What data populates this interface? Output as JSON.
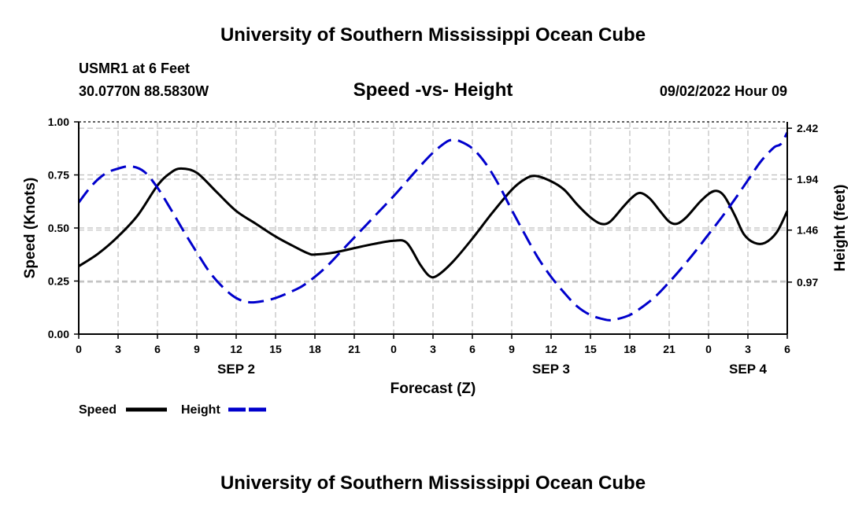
{
  "header": {
    "title": "University of Southern Mississippi Ocean Cube",
    "station": "USMR1 at 6 Feet",
    "coordinates": "30.0770N  88.5830W",
    "subtitle": "Speed -vs- Height",
    "datetime": "09/02/2022 Hour 09",
    "footer_title": "University of Southern Mississippi Ocean Cube"
  },
  "chart_data": {
    "type": "line",
    "title": "Speed -vs- Height",
    "xlabel": "Forecast (Z)",
    "ylabel": "Speed (Knots)",
    "y2label": "Height (feet)",
    "x_hours": [
      0,
      3,
      6,
      9,
      12,
      15,
      18,
      21,
      24,
      27,
      30,
      33,
      36,
      39,
      42,
      45,
      48,
      51,
      54
    ],
    "x_tick_labels": [
      "0",
      "3",
      "6",
      "9",
      "12",
      "15",
      "18",
      "21",
      "0",
      "3",
      "6",
      "9",
      "12",
      "15",
      "18",
      "21",
      "0",
      "3",
      "6"
    ],
    "date_labels": [
      {
        "label": "SEP 2",
        "hour": 12
      },
      {
        "label": "SEP 3",
        "hour": 36
      },
      {
        "label": "SEP 4",
        "hour": 51
      }
    ],
    "xlim": [
      0,
      54
    ],
    "ylim": [
      0,
      1.0
    ],
    "y_ticks": [
      "0.00",
      "0.25",
      "0.50",
      "0.75",
      "1.00"
    ],
    "y2lim": [
      0.48,
      2.48
    ],
    "y2_ticks": [
      "0.97",
      "1.46",
      "1.94",
      "2.42"
    ],
    "grid": true,
    "series": [
      {
        "name": "Speed",
        "axis": "left",
        "color": "#000000",
        "style": "solid",
        "points": [
          [
            0,
            0.32
          ],
          [
            1.5,
            0.38
          ],
          [
            3,
            0.46
          ],
          [
            4.5,
            0.56
          ],
          [
            6,
            0.7
          ],
          [
            7,
            0.76
          ],
          [
            7.8,
            0.78
          ],
          [
            9,
            0.76
          ],
          [
            10.5,
            0.67
          ],
          [
            12,
            0.58
          ],
          [
            13.5,
            0.52
          ],
          [
            15,
            0.46
          ],
          [
            16.5,
            0.41
          ],
          [
            17.5,
            0.38
          ],
          [
            18,
            0.375
          ],
          [
            19.5,
            0.385
          ],
          [
            21,
            0.405
          ],
          [
            22.5,
            0.425
          ],
          [
            24,
            0.44
          ],
          [
            25,
            0.43
          ],
          [
            26,
            0.33
          ],
          [
            26.7,
            0.275
          ],
          [
            27.3,
            0.275
          ],
          [
            28.5,
            0.34
          ],
          [
            30,
            0.45
          ],
          [
            31.5,
            0.57
          ],
          [
            33,
            0.68
          ],
          [
            34,
            0.73
          ],
          [
            34.8,
            0.745
          ],
          [
            36,
            0.72
          ],
          [
            37,
            0.68
          ],
          [
            38,
            0.61
          ],
          [
            39,
            0.55
          ],
          [
            39.8,
            0.52
          ],
          [
            40.5,
            0.53
          ],
          [
            41.5,
            0.6
          ],
          [
            42.2,
            0.645
          ],
          [
            42.8,
            0.665
          ],
          [
            43.5,
            0.64
          ],
          [
            44.3,
            0.58
          ],
          [
            45,
            0.53
          ],
          [
            45.6,
            0.52
          ],
          [
            46.3,
            0.55
          ],
          [
            47.3,
            0.62
          ],
          [
            48,
            0.66
          ],
          [
            48.6,
            0.675
          ],
          [
            49.2,
            0.65
          ],
          [
            50,
            0.56
          ],
          [
            50.7,
            0.47
          ],
          [
            51.5,
            0.43
          ],
          [
            52.3,
            0.43
          ],
          [
            53.2,
            0.48
          ],
          [
            54,
            0.58
          ]
        ]
      },
      {
        "name": "Height",
        "axis": "right",
        "color": "#0000cc",
        "style": "dashed",
        "points": [
          [
            0,
            1.72
          ],
          [
            1,
            1.88
          ],
          [
            2,
            1.99
          ],
          [
            3,
            2.04
          ],
          [
            4,
            2.06
          ],
          [
            5,
            2.01
          ],
          [
            6,
            1.86
          ],
          [
            7,
            1.66
          ],
          [
            8,
            1.45
          ],
          [
            9,
            1.25
          ],
          [
            10,
            1.06
          ],
          [
            11,
            0.92
          ],
          [
            12,
            0.82
          ],
          [
            13,
            0.78
          ],
          [
            14,
            0.79
          ],
          [
            15,
            0.82
          ],
          [
            16,
            0.87
          ],
          [
            17,
            0.93
          ],
          [
            18,
            1.02
          ],
          [
            19,
            1.13
          ],
          [
            20,
            1.26
          ],
          [
            21,
            1.39
          ],
          [
            22,
            1.52
          ],
          [
            23,
            1.65
          ],
          [
            24,
            1.78
          ],
          [
            25,
            1.92
          ],
          [
            26,
            2.06
          ],
          [
            27,
            2.19
          ],
          [
            28,
            2.29
          ],
          [
            28.5,
            2.31
          ],
          [
            29,
            2.3
          ],
          [
            30,
            2.23
          ],
          [
            31,
            2.09
          ],
          [
            32,
            1.89
          ],
          [
            33,
            1.65
          ],
          [
            34,
            1.42
          ],
          [
            35,
            1.2
          ],
          [
            36,
            1.02
          ],
          [
            37,
            0.87
          ],
          [
            38,
            0.74
          ],
          [
            39,
            0.66
          ],
          [
            40,
            0.62
          ],
          [
            40.5,
            0.61
          ],
          [
            41,
            0.62
          ],
          [
            42,
            0.66
          ],
          [
            43,
            0.74
          ],
          [
            44,
            0.84
          ],
          [
            45,
            0.97
          ],
          [
            46,
            1.11
          ],
          [
            47,
            1.26
          ],
          [
            48,
            1.42
          ],
          [
            49,
            1.58
          ],
          [
            50,
            1.75
          ],
          [
            51,
            1.93
          ],
          [
            52,
            2.11
          ],
          [
            53,
            2.24
          ],
          [
            53.5,
            2.27
          ],
          [
            54,
            2.38
          ]
        ]
      }
    ],
    "legend": {
      "placement": "bottom-left",
      "entries": [
        {
          "label": "Speed",
          "color": "#000000",
          "style": "solid"
        },
        {
          "label": "Height",
          "color": "#0000cc",
          "style": "dashed"
        }
      ]
    }
  }
}
